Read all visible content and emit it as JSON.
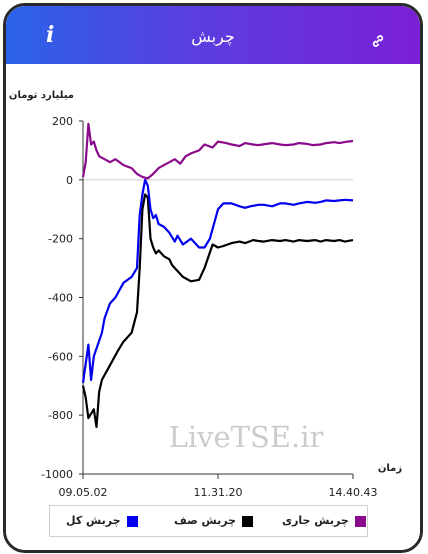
{
  "header": {
    "title": "چربش",
    "info_label": "i",
    "link_icon": "link-icon"
  },
  "watermark": "LiveTSE.ir",
  "colors": {
    "header_start": "#2a63e8",
    "header_end": "#7a1fd6",
    "series_total": "#0000ee",
    "series_queue": "#000000",
    "series_current": "#8b0a8b"
  },
  "chart_data": {
    "type": "line",
    "ylabel": "میلیارد تومان",
    "xlabel": "زمان",
    "ylim": [
      -1000,
      200
    ],
    "yticks": [
      200,
      0,
      -200,
      -400,
      -600,
      -800,
      -1000
    ],
    "xticks": [
      "09.05.02",
      "11.31.20",
      "14.40.43"
    ],
    "grid": "horizontal at 0",
    "legend_position": "bottom",
    "series": [
      {
        "name": "چربش کل",
        "color": "#0000ee",
        "x": [
          0,
          2,
          3,
          4,
          7,
          8,
          10,
          12,
          15,
          18,
          20,
          21,
          22,
          23,
          24,
          25,
          26,
          27,
          28,
          30,
          32,
          34,
          35,
          37,
          40,
          43,
          45,
          47,
          50,
          52,
          55,
          58,
          60,
          62,
          65,
          67,
          70,
          73,
          75,
          78,
          80,
          83,
          86,
          88,
          90,
          93,
          95,
          97,
          100
        ],
        "y": [
          -690,
          -560,
          -680,
          -600,
          -520,
          -470,
          -420,
          -400,
          -350,
          -330,
          -300,
          -120,
          -50,
          0,
          -20,
          -100,
          -130,
          -120,
          -150,
          -160,
          -180,
          -210,
          -190,
          -220,
          -200,
          -230,
          -230,
          -200,
          -100,
          -80,
          -80,
          -90,
          -95,
          -90,
          -85,
          -85,
          -90,
          -80,
          -80,
          -85,
          -80,
          -75,
          -78,
          -75,
          -70,
          -72,
          -70,
          -68,
          -70
        ]
      },
      {
        "name": "چربش صف",
        "color": "#000000",
        "x": [
          0,
          1,
          2,
          4,
          5,
          6,
          7,
          10,
          13,
          15,
          18,
          20,
          21,
          22,
          23,
          24,
          25,
          26,
          27,
          28,
          30,
          32,
          33,
          35,
          37,
          40,
          43,
          45,
          48,
          50,
          52,
          55,
          58,
          60,
          63,
          65,
          67,
          70,
          73,
          75,
          78,
          80,
          83,
          86,
          88,
          90,
          93,
          95,
          97,
          100
        ],
        "y": [
          -700,
          -740,
          -810,
          -780,
          -840,
          -720,
          -680,
          -630,
          -580,
          -550,
          -520,
          -450,
          -300,
          -100,
          -50,
          -60,
          -200,
          -230,
          -250,
          -240,
          -260,
          -270,
          -290,
          -310,
          -330,
          -345,
          -340,
          -300,
          -220,
          -230,
          -225,
          -215,
          -210,
          -215,
          -205,
          -208,
          -210,
          -205,
          -208,
          -205,
          -210,
          -205,
          -208,
          -205,
          -210,
          -205,
          -208,
          -205,
          -210,
          -205
        ]
      },
      {
        "name": "چربش جاری",
        "color": "#8b0a8b",
        "x": [
          0,
          1,
          2,
          3,
          4,
          5,
          6,
          8,
          10,
          12,
          15,
          18,
          20,
          22,
          24,
          26,
          28,
          30,
          32,
          34,
          36,
          38,
          40,
          43,
          45,
          48,
          50,
          53,
          55,
          58,
          60,
          63,
          65,
          68,
          70,
          73,
          75,
          78,
          80,
          83,
          85,
          88,
          90,
          93,
          95,
          98,
          100
        ],
        "y": [
          10,
          60,
          190,
          120,
          130,
          100,
          80,
          70,
          60,
          70,
          50,
          40,
          20,
          10,
          5,
          20,
          40,
          50,
          60,
          70,
          55,
          80,
          90,
          100,
          120,
          110,
          130,
          125,
          120,
          115,
          125,
          120,
          118,
          122,
          125,
          120,
          118,
          120,
          125,
          122,
          118,
          120,
          125,
          128,
          125,
          130,
          132
        ]
      }
    ]
  }
}
